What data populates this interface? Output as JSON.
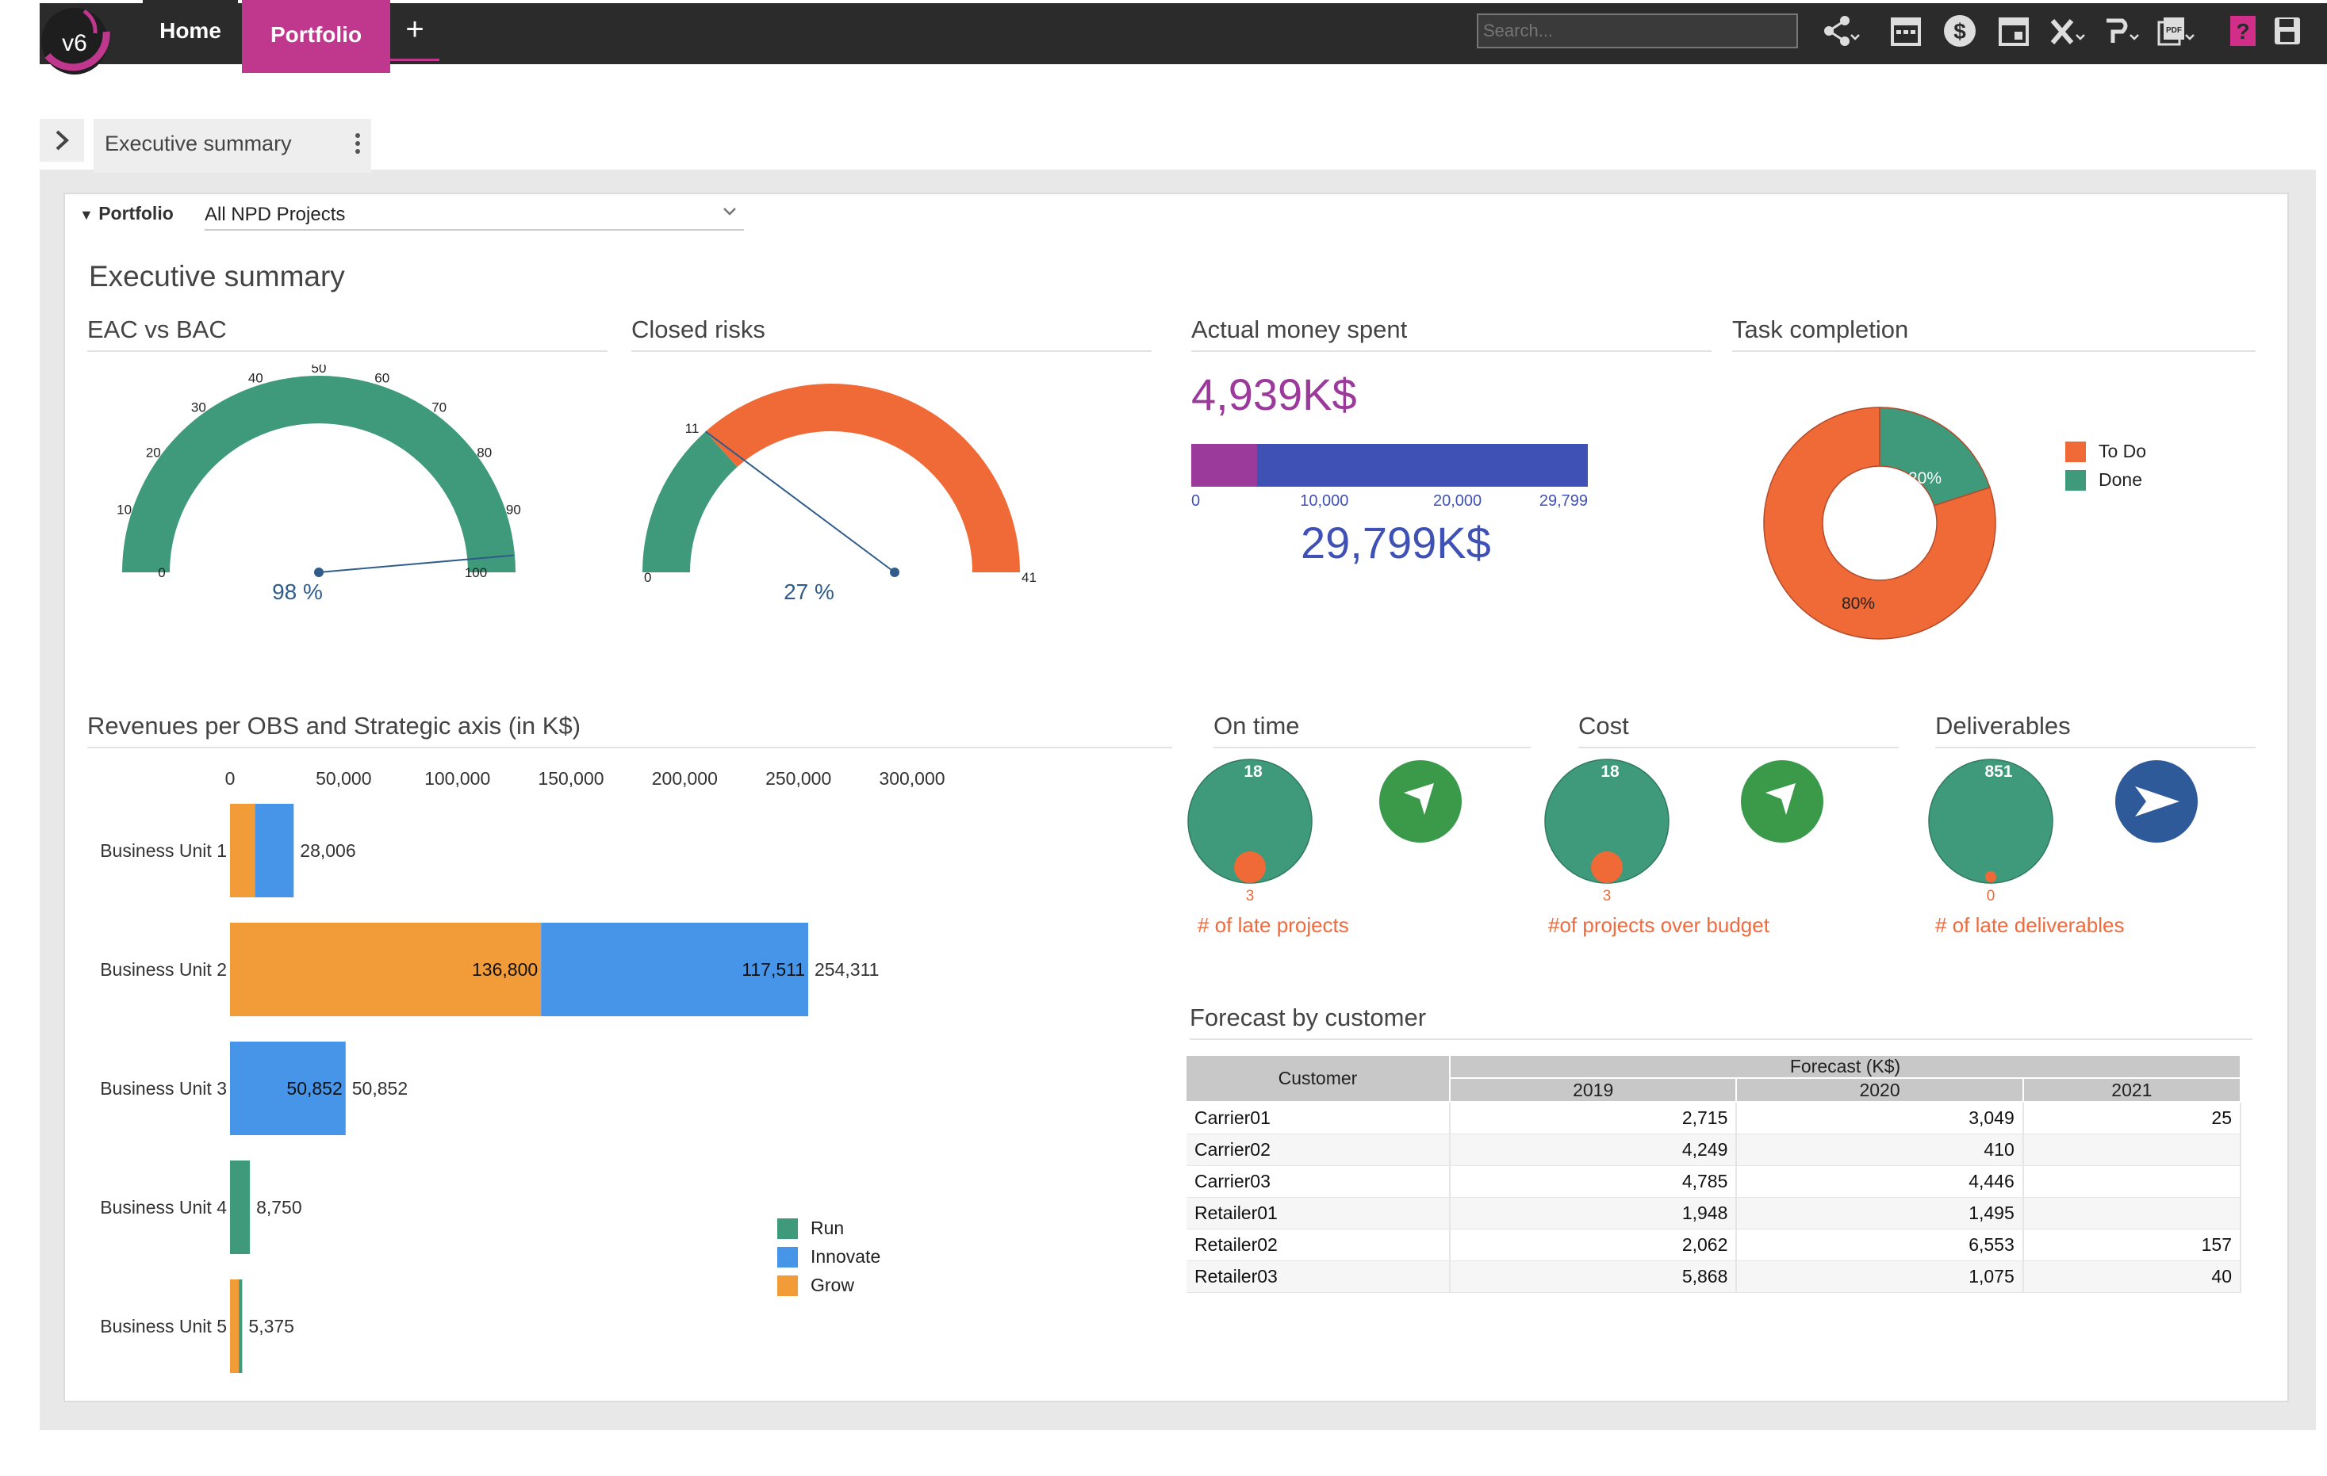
{
  "topbar": {
    "logo_text": "v6",
    "tabs": [
      {
        "label": "Home"
      },
      {
        "label": "Portfolio"
      }
    ],
    "add_label": "+",
    "search_placeholder": "Search...",
    "tools": [
      "share-icon",
      "calendar-icon",
      "dollar-icon",
      "calendar-event-icon",
      "excel-icon",
      "powerpoint-icon",
      "pdf-icon",
      "help-icon",
      "save-icon"
    ]
  },
  "breadcrumb": {
    "label": "Executive summary"
  },
  "filter": {
    "label": "Portfolio",
    "value": "All NPD Projects"
  },
  "page": {
    "title": "Executive summary"
  },
  "sections": {
    "eac": "EAC vs BAC",
    "risks": "Closed risks",
    "money": "Actual money spent",
    "task": "Task completion",
    "revenues": "Revenues per OBS and Strategic axis (in K$)",
    "ontime": "On time",
    "cost": "Cost",
    "deliverables": "Deliverables",
    "forecast": "Forecast by customer"
  },
  "gauges": {
    "eac": {
      "min": 0,
      "max": 100,
      "value": 98,
      "ticks": [
        0,
        10,
        20,
        30,
        40,
        50,
        60,
        70,
        80,
        90,
        100
      ],
      "readout": "98 %",
      "color": "#3e9a7a"
    },
    "risks": {
      "min": 0,
      "max": 41,
      "value": 11,
      "min_label": "0",
      "max_label": "41",
      "value_label": "11",
      "readout": "27 %",
      "done_color": "#3e9a7a",
      "remain_color": "#ef6a37"
    }
  },
  "money": {
    "spent": "4,939K$",
    "total": "29,799K$",
    "spent_value": 4939,
    "total_value": 29799,
    "axis_labels": [
      "0",
      "10,000",
      "20,000",
      "29,799"
    ],
    "spent_color": "#9c3a9c",
    "total_color": "#3f51b5"
  },
  "task": {
    "legend": [
      {
        "label": "To Do",
        "color": "#ef6a37"
      },
      {
        "label": "Done",
        "color": "#3e9a7a"
      }
    ],
    "todo_pct": 80,
    "done_pct": 20,
    "todo_label": "80%",
    "done_label": "20%"
  },
  "kpis": [
    {
      "key": "ontime",
      "top": "18",
      "bottom": "3",
      "caption": "# of late projects",
      "arrow": "up-left"
    },
    {
      "key": "cost",
      "top": "18",
      "bottom": "3",
      "caption": "#of projects over budget",
      "arrow": "up-left"
    },
    {
      "key": "deliverables",
      "top": "851",
      "bottom": "0",
      "caption": "# of late deliverables",
      "arrow": "right"
    }
  ],
  "chart_data": {
    "type": "bar",
    "orientation": "horizontal",
    "stacked": true,
    "categories": [
      "Business Unit 1",
      "Business Unit 2",
      "Business Unit 3",
      "Business Unit 4",
      "Business Unit 5"
    ],
    "series": [
      {
        "name": "Run",
        "color": "#3e9a7a",
        "values": [
          0,
          0,
          0,
          8750,
          1500
        ]
      },
      {
        "name": "Innovate",
        "color": "#4795e8",
        "values": [
          17000,
          117511,
          50852,
          0,
          0
        ]
      },
      {
        "name": "Grow",
        "color": "#f19c38",
        "values": [
          11006,
          136800,
          0,
          0,
          3875
        ]
      }
    ],
    "totals": [
      28006,
      254311,
      50852,
      8750,
      5375
    ],
    "total_labels": [
      "28,006",
      "254,311",
      "50,852",
      "8,750",
      "5,375"
    ],
    "segment_labels": [
      {
        "category": 1,
        "series": "Grow",
        "label": "136,800"
      },
      {
        "category": 1,
        "series": "Innovate",
        "label": "117,511"
      },
      {
        "category": 2,
        "series": "Innovate",
        "label": "50,852"
      }
    ],
    "xlim": [
      0,
      300000
    ],
    "x_ticks": [
      "0",
      "50,000",
      "100,000",
      "150,000",
      "200,000",
      "250,000",
      "300,000"
    ],
    "legend_placement": "bottom-right",
    "grid": false
  },
  "forecast": {
    "customer_header": "Customer",
    "group_header": "Forecast (K$)",
    "years": [
      "2019",
      "2020",
      "2021"
    ],
    "rows": [
      {
        "customer": "Carrier01",
        "v": [
          "2,715",
          "3,049",
          "25"
        ]
      },
      {
        "customer": "Carrier02",
        "v": [
          "4,249",
          "410",
          ""
        ]
      },
      {
        "customer": "Carrier03",
        "v": [
          "4,785",
          "4,446",
          ""
        ]
      },
      {
        "customer": "Retailer01",
        "v": [
          "1,948",
          "1,495",
          ""
        ]
      },
      {
        "customer": "Retailer02",
        "v": [
          "2,062",
          "6,553",
          "157"
        ]
      },
      {
        "customer": "Retailer03",
        "v": [
          "5,868",
          "1,075",
          "40"
        ]
      }
    ]
  }
}
